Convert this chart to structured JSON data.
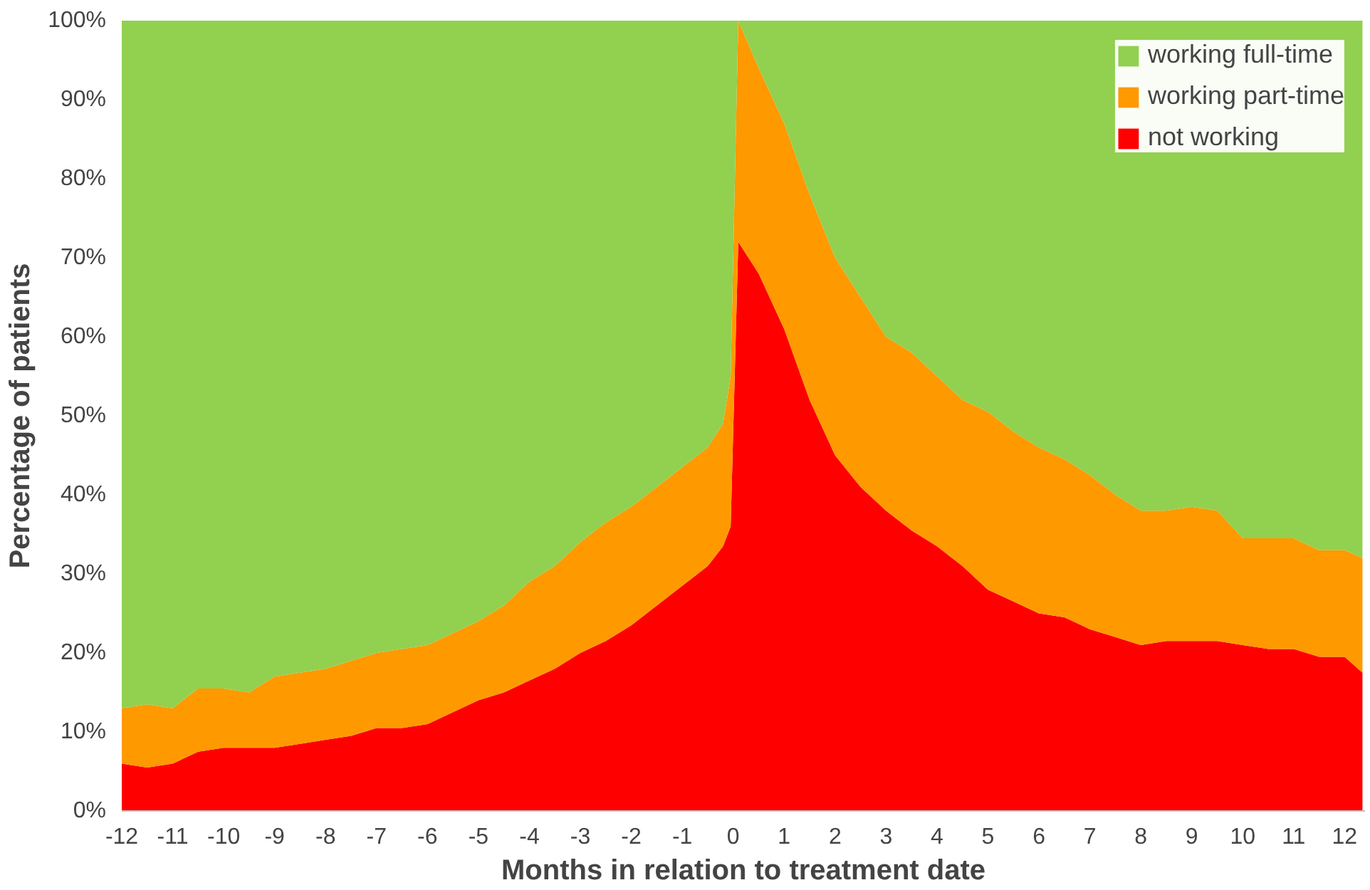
{
  "chart_data": {
    "type": "area",
    "stacked": true,
    "xlabel": "Months in relation to treatment date",
    "ylabel": "Percentage of patients",
    "x": [
      -12,
      -11.5,
      -11,
      -10.5,
      -10,
      -9.5,
      -9,
      -8.5,
      -8,
      -7.5,
      -7,
      -6.5,
      -6,
      -5.5,
      -5,
      -4.5,
      -4,
      -3.5,
      -3,
      -2.5,
      -2,
      -1.5,
      -1,
      -0.5,
      -0.2,
      -0.05,
      0.1,
      0.5,
      1,
      1.5,
      2,
      2.5,
      3,
      3.5,
      4,
      4.5,
      5,
      5.5,
      6,
      6.5,
      7,
      7.5,
      8,
      8.5,
      9,
      9.5,
      10,
      10.5,
      11,
      11.5,
      12,
      12.35
    ],
    "series": [
      {
        "name": "not working",
        "color": "#ff0000",
        "values": [
          6,
          5.5,
          6,
          7.5,
          8,
          8,
          8,
          8.5,
          9,
          9.5,
          10.5,
          10.5,
          11,
          12.5,
          14,
          15,
          16.5,
          18,
          20,
          21.5,
          23.5,
          26,
          28.5,
          31,
          33.5,
          36,
          72,
          68,
          61,
          52,
          45,
          41,
          38,
          35.5,
          33.5,
          31,
          28,
          26.5,
          25,
          24.5,
          23,
          22,
          21,
          21.5,
          21.5,
          21.5,
          21,
          20.5,
          20.5,
          19.5,
          19.5,
          17.5
        ]
      },
      {
        "name": "working part-time",
        "color": "#ff9900",
        "values": [
          7,
          8,
          7,
          8,
          7.5,
          7,
          9,
          9,
          9,
          9.5,
          9.5,
          10,
          10,
          10,
          10,
          11,
          12.5,
          13,
          14,
          15,
          15,
          15,
          15,
          15,
          15.5,
          19,
          28,
          26,
          26,
          26,
          25,
          24,
          22,
          22.5,
          21.5,
          21,
          22.5,
          21.5,
          21,
          20,
          19.5,
          18,
          17,
          16.5,
          17,
          16.5,
          13.5,
          14,
          14,
          13.5,
          13.5,
          14.5
        ]
      },
      {
        "name": "working full-time",
        "color": "#92d050",
        "values": [
          87,
          86.5,
          87,
          84.5,
          84.5,
          85,
          83,
          82.5,
          82,
          81,
          80,
          79.5,
          79,
          77.5,
          76,
          74,
          71,
          69,
          66,
          63.5,
          61.5,
          59,
          56.5,
          54,
          51,
          45,
          0,
          6,
          13,
          22,
          30,
          35,
          40,
          42,
          45,
          48,
          49.5,
          52,
          54,
          55.5,
          57.5,
          60,
          62,
          62,
          61.5,
          62,
          65.5,
          65.5,
          65.5,
          67,
          67,
          68
        ]
      }
    ],
    "xlim": [
      -12,
      12.4
    ],
    "xticks": [
      -12,
      -11,
      -10,
      -9,
      -8,
      -7,
      -6,
      -5,
      -4,
      -3,
      -2,
      -1,
      0,
      1,
      2,
      3,
      4,
      5,
      6,
      7,
      8,
      9,
      10,
      11,
      12
    ],
    "ylim": [
      0,
      100
    ],
    "yticks": [
      {
        "value": 0,
        "label": "0%"
      },
      {
        "value": 10,
        "label": "10%"
      },
      {
        "value": 20,
        "label": "20%"
      },
      {
        "value": 30,
        "label": "30%"
      },
      {
        "value": 40,
        "label": "40%"
      },
      {
        "value": 50,
        "label": "50%"
      },
      {
        "value": 60,
        "label": "60%"
      },
      {
        "value": 70,
        "label": "70%"
      },
      {
        "value": 80,
        "label": "80%"
      },
      {
        "value": 90,
        "label": "90%"
      },
      {
        "value": 100,
        "label": "100%"
      }
    ],
    "grid": false,
    "legend": "top right"
  }
}
